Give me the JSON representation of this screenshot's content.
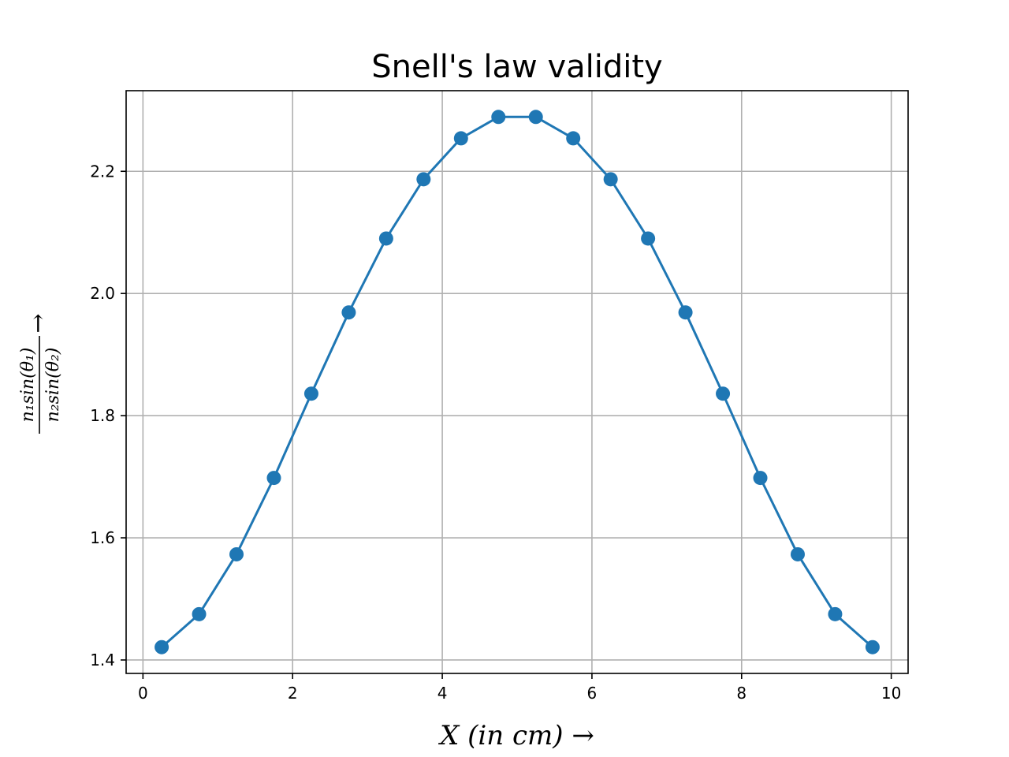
{
  "chart_data": {
    "type": "line",
    "title": "Snell's law validity",
    "xlabel": "X (in cm) →",
    "ylabel": "n₁sin(θ₁) / n₂sin(θ₂) →",
    "ylabel_parts": {
      "numerator": "n₁sin(θ₁)",
      "denominator": "n₂sin(θ₂)",
      "arrow": "→"
    },
    "xlim": [
      -0.225,
      10.225
    ],
    "ylim": [
      1.378,
      2.332
    ],
    "xticks": [
      0,
      2,
      4,
      6,
      8,
      10
    ],
    "xtick_labels": [
      "0",
      "2",
      "4",
      "6",
      "8",
      "10"
    ],
    "yticks": [
      1.4,
      1.6,
      1.8,
      2.0,
      2.2
    ],
    "ytick_labels": [
      "1.4",
      "1.6",
      "1.8",
      "2.0",
      "2.2"
    ],
    "grid": true,
    "series": [
      {
        "color": "#1f77b4",
        "marker": "circle",
        "x": [
          0.25,
          0.75,
          1.25,
          1.75,
          2.25,
          2.75,
          3.25,
          3.75,
          4.25,
          4.75,
          5.25,
          5.75,
          6.25,
          6.75,
          7.25,
          7.75,
          8.25,
          8.75,
          9.25,
          9.75
        ],
        "y": [
          1.421,
          1.475,
          1.573,
          1.698,
          1.836,
          1.969,
          2.09,
          2.187,
          2.254,
          2.289,
          2.289,
          2.254,
          2.187,
          2.09,
          1.969,
          1.836,
          1.698,
          1.573,
          1.475,
          1.421
        ]
      }
    ]
  }
}
